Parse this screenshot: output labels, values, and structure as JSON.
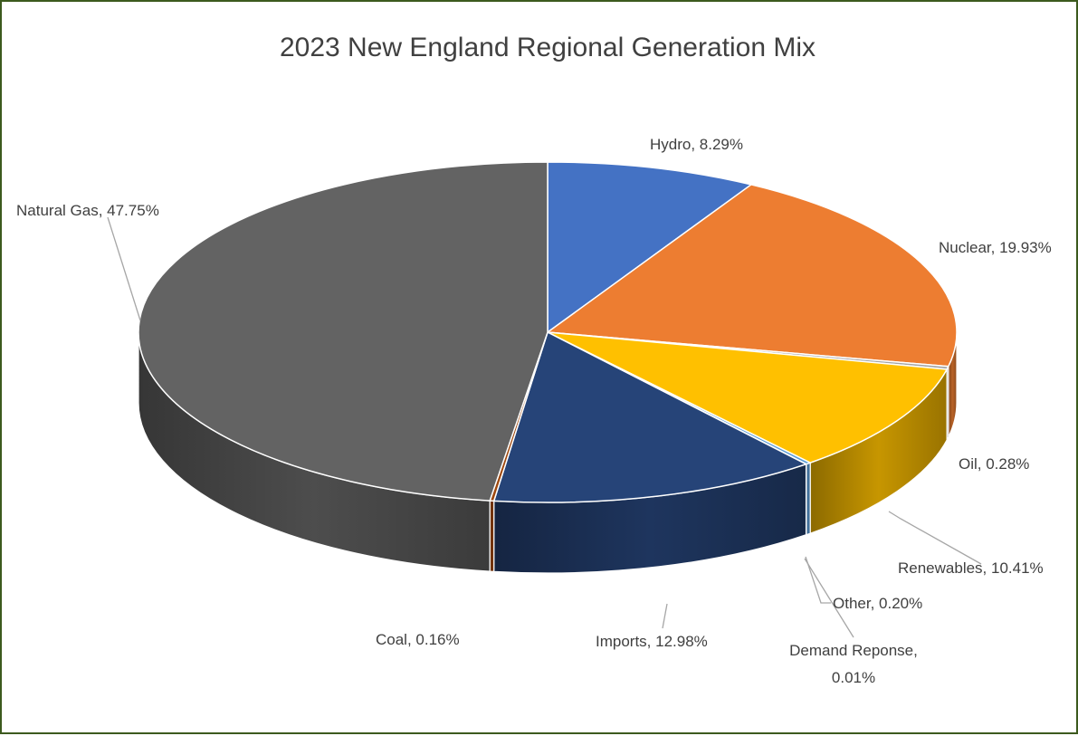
{
  "chart_data": {
    "type": "pie",
    "title": "2023 New England Regional Generation Mix",
    "slices": [
      {
        "name": "Hydro",
        "value": 8.29,
        "label": "Hydro, 8.29%",
        "color": "#4472c4"
      },
      {
        "name": "Nuclear",
        "value": 19.93,
        "label": "Nuclear, 19.93%",
        "color": "#ed7d31"
      },
      {
        "name": "Oil",
        "value": 0.28,
        "label": "Oil, 0.28%",
        "color": "#a5a5a5"
      },
      {
        "name": "Renewables",
        "value": 10.41,
        "label": "Renewables, 10.41%",
        "color": "#ffc000"
      },
      {
        "name": "Other",
        "value": 0.2,
        "label": "Other, 0.20%",
        "color": "#5b9bd5"
      },
      {
        "name": "Demand Reponse",
        "value": 0.01,
        "label": "Demand Reponse, 0.01%",
        "color": "#70ad47"
      },
      {
        "name": "Imports",
        "value": 12.98,
        "label": "Imports, 12.98%",
        "color": "#264478"
      },
      {
        "name": "Coal",
        "value": 0.16,
        "label": "Coal, 0.16%",
        "color": "#9e480e"
      },
      {
        "name": "Natural Gas",
        "value": 47.75,
        "label": "Natural Gas, 47.75%",
        "color": "#636363"
      }
    ]
  }
}
